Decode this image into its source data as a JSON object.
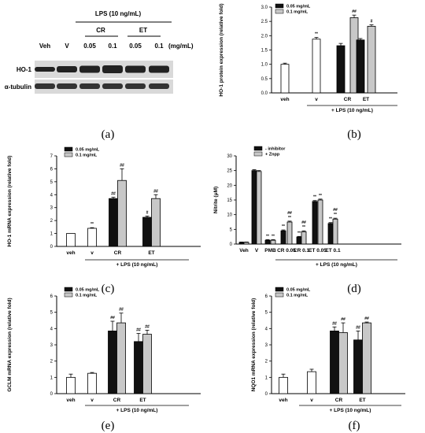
{
  "western_blot": {
    "header": "LPS (10  ng/mL)",
    "groups": [
      {
        "label": "CR"
      },
      {
        "label": "ET"
      }
    ],
    "lanes": [
      "Veh",
      "V",
      "0.05",
      "0.1",
      "0.05",
      "0.1"
    ],
    "unit": "(mg/mL)",
    "rows": [
      {
        "label": "HO-1"
      },
      {
        "label": "α-tubulin"
      }
    ],
    "panel_label": "(a)"
  },
  "chart_data": [
    {
      "id": "b",
      "type": "bar",
      "panel_label": "(b)",
      "ylabel": "HO-1 protein expression (relative fold)",
      "ylim": [
        0,
        3.0
      ],
      "yticks": [
        0.0,
        0.5,
        1.0,
        1.5,
        2.0,
        2.5,
        3.0
      ],
      "ydecimals": 1,
      "legend": [
        "0.05 mg/mL",
        "0.1 mg/mL"
      ],
      "categories": [
        "veh",
        "v",
        "CR",
        "ET"
      ],
      "bracket_label": "+ LPS (10 ng/mL)",
      "bars": [
        {
          "category": "veh",
          "style": "white",
          "value": 1.0,
          "err": 0.04,
          "label": ""
        },
        {
          "category": "v",
          "style": "white",
          "value": 1.88,
          "err": 0.06,
          "label": "**"
        },
        {
          "category": "CR",
          "style": "black",
          "value": 1.65,
          "err": 0.08,
          "label": ""
        },
        {
          "category": "CR",
          "style": "gray",
          "value": 2.63,
          "err": 0.09,
          "label": "##"
        },
        {
          "category": "ET",
          "style": "black",
          "value": 1.85,
          "err": 0.05,
          "label": ""
        },
        {
          "category": "ET",
          "style": "gray",
          "value": 2.33,
          "err": 0.05,
          "label": "#"
        }
      ]
    },
    {
      "id": "c",
      "type": "bar",
      "panel_label": "(c)",
      "ylabel": "HO-1 mRNA expression (relative fold)",
      "ylim": [
        0,
        7
      ],
      "yticks": [
        0,
        1,
        2,
        3,
        4,
        5,
        6,
        7
      ],
      "ydecimals": 0,
      "legend": [
        "0.05 mg/mL",
        "0.1 mg/mL"
      ],
      "categories": [
        "veh",
        "v",
        "CR",
        "ET"
      ],
      "bracket_label": "+ LPS (10 ng/mL)",
      "bars": [
        {
          "category": "veh",
          "style": "white",
          "value": 1.0,
          "err": 0.0,
          "label": ""
        },
        {
          "category": "v",
          "style": "white",
          "value": 1.4,
          "err": 0.05,
          "label": "**"
        },
        {
          "category": "CR",
          "style": "black",
          "value": 3.7,
          "err": 0.1,
          "label": "##"
        },
        {
          "category": "CR",
          "style": "gray",
          "value": 5.1,
          "err": 0.9,
          "label": "##"
        },
        {
          "category": "ET",
          "style": "black",
          "value": 2.25,
          "err": 0.1,
          "label": "#"
        },
        {
          "category": "ET",
          "style": "gray",
          "value": 3.7,
          "err": 0.3,
          "label": "##"
        }
      ]
    },
    {
      "id": "d",
      "type": "bar",
      "panel_label": "(d)",
      "ylabel": "Nitrite (μM)",
      "ylim": [
        0,
        30
      ],
      "yticks": [
        0,
        5,
        10,
        15,
        20,
        25,
        30
      ],
      "ydecimals": 0,
      "legend": [
        "- inhibitor",
        "+ Znpp"
      ],
      "categories": [
        "Veh",
        "V",
        "PMB",
        "CR 0.05",
        "CR 0.1",
        "ET 0.05",
        "ET 0.1"
      ],
      "bracket_label": "+ LPS (10 ng/mL)",
      "bars": [
        {
          "category": "Veh",
          "style": "black",
          "value": 0.6,
          "err": 0.1,
          "label": ""
        },
        {
          "category": "Veh",
          "style": "gray",
          "value": 0.6,
          "err": 0.1,
          "label": ""
        },
        {
          "category": "V",
          "style": "black",
          "value": 25.0,
          "err": 0.3,
          "label": ""
        },
        {
          "category": "V",
          "style": "gray",
          "value": 24.7,
          "err": 0.3,
          "label": ""
        },
        {
          "category": "PMB",
          "style": "black",
          "value": 1.3,
          "err": 0.2,
          "label": "**"
        },
        {
          "category": "PMB",
          "style": "gray",
          "value": 1.3,
          "err": 0.2,
          "label": "**"
        },
        {
          "category": "CR 0.05",
          "style": "black",
          "value": 4.5,
          "err": 0.3,
          "label": "**"
        },
        {
          "category": "CR 0.05",
          "style": "gray",
          "value": 7.5,
          "err": 0.3,
          "label": "##\n**"
        },
        {
          "category": "CR 0.1",
          "style": "black",
          "value": 2.4,
          "err": 0.2,
          "label": "**"
        },
        {
          "category": "CR 0.1",
          "style": "gray",
          "value": 4.2,
          "err": 0.3,
          "label": "##\n**"
        },
        {
          "category": "ET 0.05",
          "style": "black",
          "value": 14.5,
          "err": 0.3,
          "label": "**"
        },
        {
          "category": "ET 0.05",
          "style": "gray",
          "value": 15.0,
          "err": 0.3,
          "label": "**"
        },
        {
          "category": "ET 0.1",
          "style": "black",
          "value": 7.0,
          "err": 0.3,
          "label": "**"
        },
        {
          "category": "ET 0.1",
          "style": "gray",
          "value": 8.5,
          "err": 0.3,
          "label": "##\n**"
        }
      ]
    },
    {
      "id": "e",
      "type": "bar",
      "panel_label": "(e)",
      "ylabel": "GCLM mRNA expression (relative fold)",
      "ylim": [
        0,
        6
      ],
      "yticks": [
        0,
        1,
        2,
        3,
        4,
        5,
        6
      ],
      "ydecimals": 0,
      "legend": [
        "0.05 mg/mL",
        "0.1 mg/mL"
      ],
      "categories": [
        "veh",
        "v",
        "CR",
        "ET"
      ],
      "bracket_label": "+ LPS (10 ng/mL)",
      "bars": [
        {
          "category": "veh",
          "style": "white",
          "value": 1.0,
          "err": 0.2,
          "label": ""
        },
        {
          "category": "v",
          "style": "white",
          "value": 1.25,
          "err": 0.05,
          "label": ""
        },
        {
          "category": "CR",
          "style": "black",
          "value": 3.85,
          "err": 0.6,
          "label": "##"
        },
        {
          "category": "CR",
          "style": "gray",
          "value": 4.35,
          "err": 0.6,
          "label": "##"
        },
        {
          "category": "ET",
          "style": "black",
          "value": 3.2,
          "err": 0.5,
          "label": "##"
        },
        {
          "category": "ET",
          "style": "gray",
          "value": 3.65,
          "err": 0.25,
          "label": "##"
        }
      ]
    },
    {
      "id": "f",
      "type": "bar",
      "panel_label": "(f)",
      "ylabel": "NQO1 mRNA expression (relative fold)",
      "ylim": [
        0,
        6
      ],
      "yticks": [
        0,
        1,
        2,
        3,
        4,
        5,
        6
      ],
      "ydecimals": 0,
      "legend": [
        "0.05 mg/mL",
        "0.1 mg/mL"
      ],
      "categories": [
        "veh",
        "v",
        "CR",
        "ET"
      ],
      "bracket_label": "+ LPS (10 ng/mL)",
      "bars": [
        {
          "category": "veh",
          "style": "white",
          "value": 1.0,
          "err": 0.2,
          "label": ""
        },
        {
          "category": "v",
          "style": "white",
          "value": 1.35,
          "err": 0.15,
          "label": ""
        },
        {
          "category": "CR",
          "style": "black",
          "value": 3.85,
          "err": 0.25,
          "label": "##"
        },
        {
          "category": "CR",
          "style": "gray",
          "value": 3.75,
          "err": 0.6,
          "label": "##"
        },
        {
          "category": "ET",
          "style": "black",
          "value": 3.3,
          "err": 0.55,
          "label": "##"
        },
        {
          "category": "ET",
          "style": "gray",
          "value": 4.35,
          "err": 0.05,
          "label": "##"
        }
      ]
    }
  ],
  "colors": {
    "black": "#111111",
    "gray": "#c8c8c8",
    "white": "#ffffff",
    "axis": "#000000"
  }
}
